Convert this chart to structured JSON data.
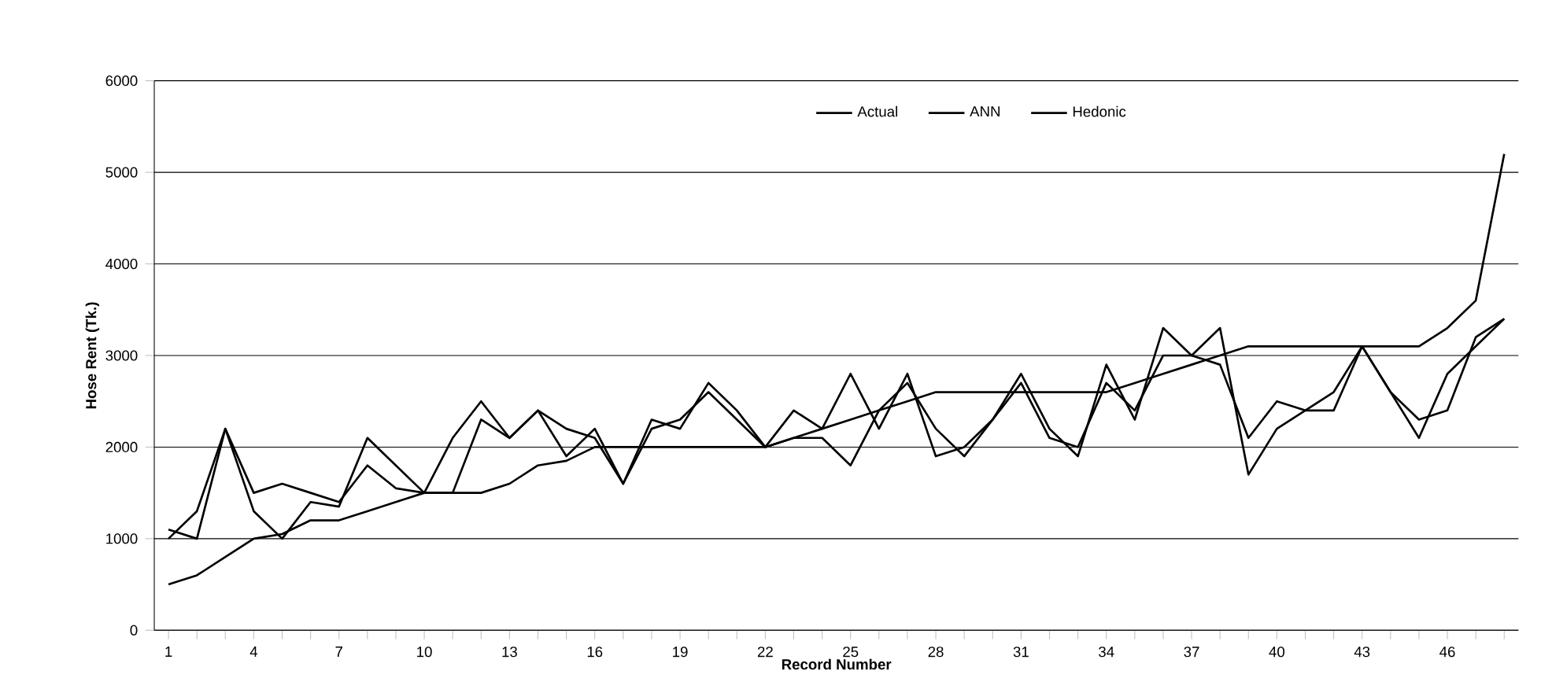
{
  "chart_data": {
    "type": "line",
    "xlabel": "Record Number",
    "ylabel": "Hose Rent (Tk.)",
    "x": [
      1,
      2,
      3,
      4,
      5,
      6,
      7,
      8,
      9,
      10,
      11,
      12,
      13,
      14,
      15,
      16,
      17,
      18,
      19,
      20,
      21,
      22,
      23,
      24,
      25,
      26,
      27,
      28,
      29,
      30,
      31,
      32,
      33,
      34,
      35,
      36,
      37,
      38,
      39,
      40,
      41,
      42,
      43,
      44,
      45,
      46,
      47,
      48
    ],
    "series": [
      {
        "name": "Actual",
        "color": "#000000",
        "values": [
          1000,
          1300,
          2200,
          1300,
          1000,
          1400,
          1350,
          2100,
          1800,
          1500,
          2100,
          2500,
          2100,
          2400,
          2200,
          2100,
          1600,
          2300,
          2200,
          2700,
          2400,
          2000,
          2400,
          2200,
          2800,
          2200,
          2800,
          1900,
          2000,
          2300,
          2800,
          2200,
          1900,
          2900,
          2300,
          3300,
          3000,
          3300,
          1700,
          2200,
          2400,
          2600,
          3100,
          2600,
          2100,
          2800,
          3100,
          3400
        ]
      },
      {
        "name": "ANN",
        "color": "#000000",
        "values": [
          1100,
          1000,
          2200,
          1500,
          1600,
          1500,
          1400,
          1800,
          1550,
          1500,
          1500,
          2300,
          2100,
          2400,
          1900,
          2200,
          1600,
          2200,
          2300,
          2600,
          2300,
          2000,
          2100,
          2100,
          1800,
          2400,
          2700,
          2200,
          1900,
          2300,
          2700,
          2100,
          2000,
          2700,
          2400,
          3000,
          3000,
          2900,
          2100,
          2500,
          2400,
          2400,
          3100,
          2600,
          2300,
          2400,
          3200,
          3400
        ]
      },
      {
        "name": "Hedonic",
        "color": "#000000",
        "values": [
          500,
          600,
          800,
          1000,
          1050,
          1200,
          1200,
          1300,
          1400,
          1500,
          1500,
          1500,
          1600,
          1800,
          1850,
          2000,
          2000,
          2000,
          2000,
          2000,
          2000,
          2000,
          2100,
          2200,
          2300,
          2400,
          2500,
          2600,
          2600,
          2600,
          2600,
          2600,
          2600,
          2600,
          2700,
          2800,
          2900,
          3000,
          3100,
          3100,
          3100,
          3100,
          3100,
          3100,
          3100,
          3300,
          3600,
          5200
        ]
      }
    ],
    "xlim": [
      0.5,
      48.5
    ],
    "xticks": [
      1,
      {
        "value": 2,
        "label": null
      },
      {
        "value": 3,
        "label": null
      },
      4,
      {
        "value": 5,
        "label": null
      },
      {
        "value": 6,
        "label": null
      },
      7,
      {
        "value": 8,
        "label": null
      },
      {
        "value": 9,
        "label": null
      },
      10,
      {
        "value": 11,
        "label": null
      },
      {
        "value": 12,
        "label": null
      },
      13,
      {
        "value": 14,
        "label": null
      },
      {
        "value": 15,
        "label": null
      },
      16,
      {
        "value": 17,
        "label": null
      },
      {
        "value": 18,
        "label": null
      },
      19,
      {
        "value": 20,
        "label": null
      },
      {
        "value": 21,
        "label": null
      },
      22,
      {
        "value": 23,
        "label": null
      },
      {
        "value": 24,
        "label": null
      },
      25,
      {
        "value": 26,
        "label": null
      },
      {
        "value": 27,
        "label": null
      },
      28,
      {
        "value": 29,
        "label": null
      },
      {
        "value": 30,
        "label": null
      },
      31,
      {
        "value": 32,
        "label": null
      },
      {
        "value": 33,
        "label": null
      },
      34,
      {
        "value": 35,
        "label": null
      },
      {
        "value": 36,
        "label": null
      },
      37,
      {
        "value": 38,
        "label": null
      },
      {
        "value": 39,
        "label": null
      },
      40,
      {
        "value": 41,
        "label": null
      },
      {
        "value": 42,
        "label": null
      },
      43,
      {
        "value": 44,
        "label": null
      },
      {
        "value": 45,
        "label": null
      },
      46,
      {
        "value": 47,
        "label": null
      },
      {
        "value": 48,
        "label": null
      }
    ],
    "ylim": [
      0,
      6000
    ],
    "yticks": [
      0,
      1000,
      2000,
      3000,
      4000,
      5000,
      6000
    ],
    "grid": "y",
    "legend": "top",
    "marker": "none",
    "line_style": "solid"
  }
}
